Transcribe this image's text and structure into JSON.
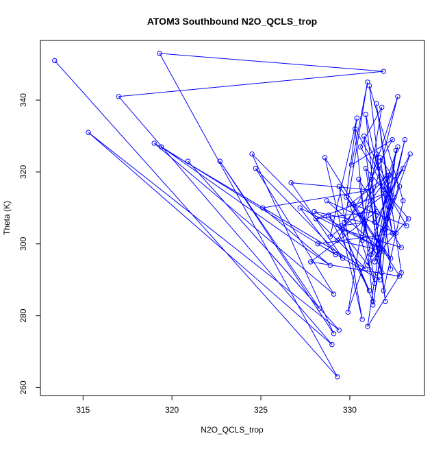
{
  "chart_data": {
    "type": "scatter",
    "mode": "lines+markers",
    "title": "ATOM3 Southbound N2O_QCLS_trop",
    "xlabel": "N2O_QCLS_trop",
    "ylabel": "Theta (K)",
    "xlim": [
      312.6,
      334.2
    ],
    "ylim": [
      257.8,
      356.6
    ],
    "x_ticks": [
      315,
      320,
      325,
      330
    ],
    "y_ticks": [
      260,
      280,
      300,
      320,
      340
    ],
    "grid": false,
    "legend": "none",
    "color": "#0000ff",
    "series": [
      {
        "x": [
          313.4,
          329.3,
          319.3,
          331.9,
          317.0,
          329.0,
          315.3,
          329.4,
          320.9,
          328.3,
          322.7,
          329.1,
          324.5,
          330.9,
          319.0,
          329.1,
          324.7,
          329.6,
          326.7,
          331.2,
          325.1,
          328.9,
          319.4,
          329.2,
          327.2,
          331.6,
          328.0,
          330.8,
          329.5,
          331.1,
          328.8,
          331.7,
          328.2,
          332.6,
          328.7,
          332.3,
          329.4,
          330.7,
          328.6,
          332.8,
          327.8,
          331.5,
          328.1,
          332.0,
          328.9,
          330.4,
          329.8,
          331.9,
          329.3,
          332.4,
          330.1,
          331.0,
          329.7,
          332.1,
          330.0,
          331.4,
          330.5,
          332.9,
          329.6,
          331.3,
          330.3,
          332.2,
          329.9,
          331.8,
          330.6,
          333.2,
          330.2,
          331.6,
          330.8,
          332.5,
          331.0,
          333.3,
          330.9,
          332.0,
          331.2,
          332.7,
          330.7,
          331.5,
          332.3,
          331.1,
          333.0,
          331.9,
          330.9,
          332.4,
          331.7,
          332.8,
          331.4,
          333.1,
          332.0,
          331.3,
          332.6,
          331.8,
          330.6,
          332.2,
          331.6,
          333.4,
          332.1,
          331.0,
          332.9,
          331.5,
          332.3,
          331.2,
          332.7,
          331.9,
          333.0,
          331.4
        ],
        "y": [
          351,
          263,
          353,
          348,
          341,
          272,
          331,
          276,
          323,
          282,
          323,
          275,
          325,
          293,
          328,
          286,
          321,
          296,
          317,
          315,
          310,
          294,
          327,
          297,
          310,
          299,
          309,
          306,
          305,
          287,
          308,
          290,
          300,
          303,
          312,
          296,
          316,
          279,
          324,
          291,
          295,
          309,
          307,
          314,
          302,
          335,
          313,
          298,
          301,
          329,
          322,
          345,
          306,
          319,
          311,
          289,
          318,
          299,
          304,
          284,
          332,
          315,
          281,
          338,
          327,
          305,
          311,
          296,
          330,
          313,
          294,
          307,
          321,
          284,
          318,
          341,
          301,
          325,
          293,
          344,
          312,
          287,
          336,
          303,
          324,
          316,
          295,
          329,
          304,
          283,
          326,
          292,
          308,
          319,
          300,
          325,
          313,
          277,
          292,
          339,
          310,
          297,
          327,
          315,
          321,
          306
        ]
      }
    ]
  }
}
